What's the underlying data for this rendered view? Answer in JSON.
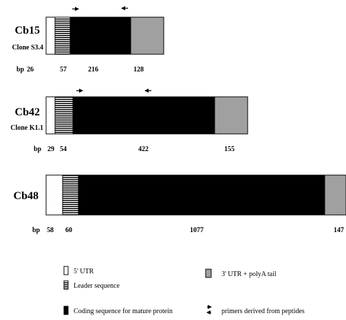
{
  "constructs": [
    {
      "name": "Cb15",
      "clone": "Clone S3.4",
      "bp_prefix": "bp",
      "lengths": {
        "utr5": "26",
        "leader": "57",
        "coding": "216",
        "utr3": "128"
      },
      "has_primers": true
    },
    {
      "name": "Cb42",
      "clone": "Clone K1.1",
      "bp_prefix": "bp",
      "lengths": {
        "utr5": "29",
        "leader": "54",
        "coding": "422",
        "utr3": "155"
      },
      "has_primers": true
    },
    {
      "name": "Cb48",
      "clone": "",
      "bp_prefix": "bp",
      "lengths": {
        "utr5": "58",
        "leader": "60",
        "coding": "1077",
        "utr3": "147"
      },
      "has_primers": false
    }
  ],
  "legend": {
    "utr5": "5' UTR",
    "leader": "Leader sequence",
    "coding": "Coding sequence for mature protein",
    "utr3": "3' UTR + polyA tail",
    "primers": "primers derived from peptides"
  },
  "colors": {
    "utr5": "#ffffff",
    "coding": "#000000",
    "utr3": "#a0a0a0",
    "stripe": "#000000"
  }
}
